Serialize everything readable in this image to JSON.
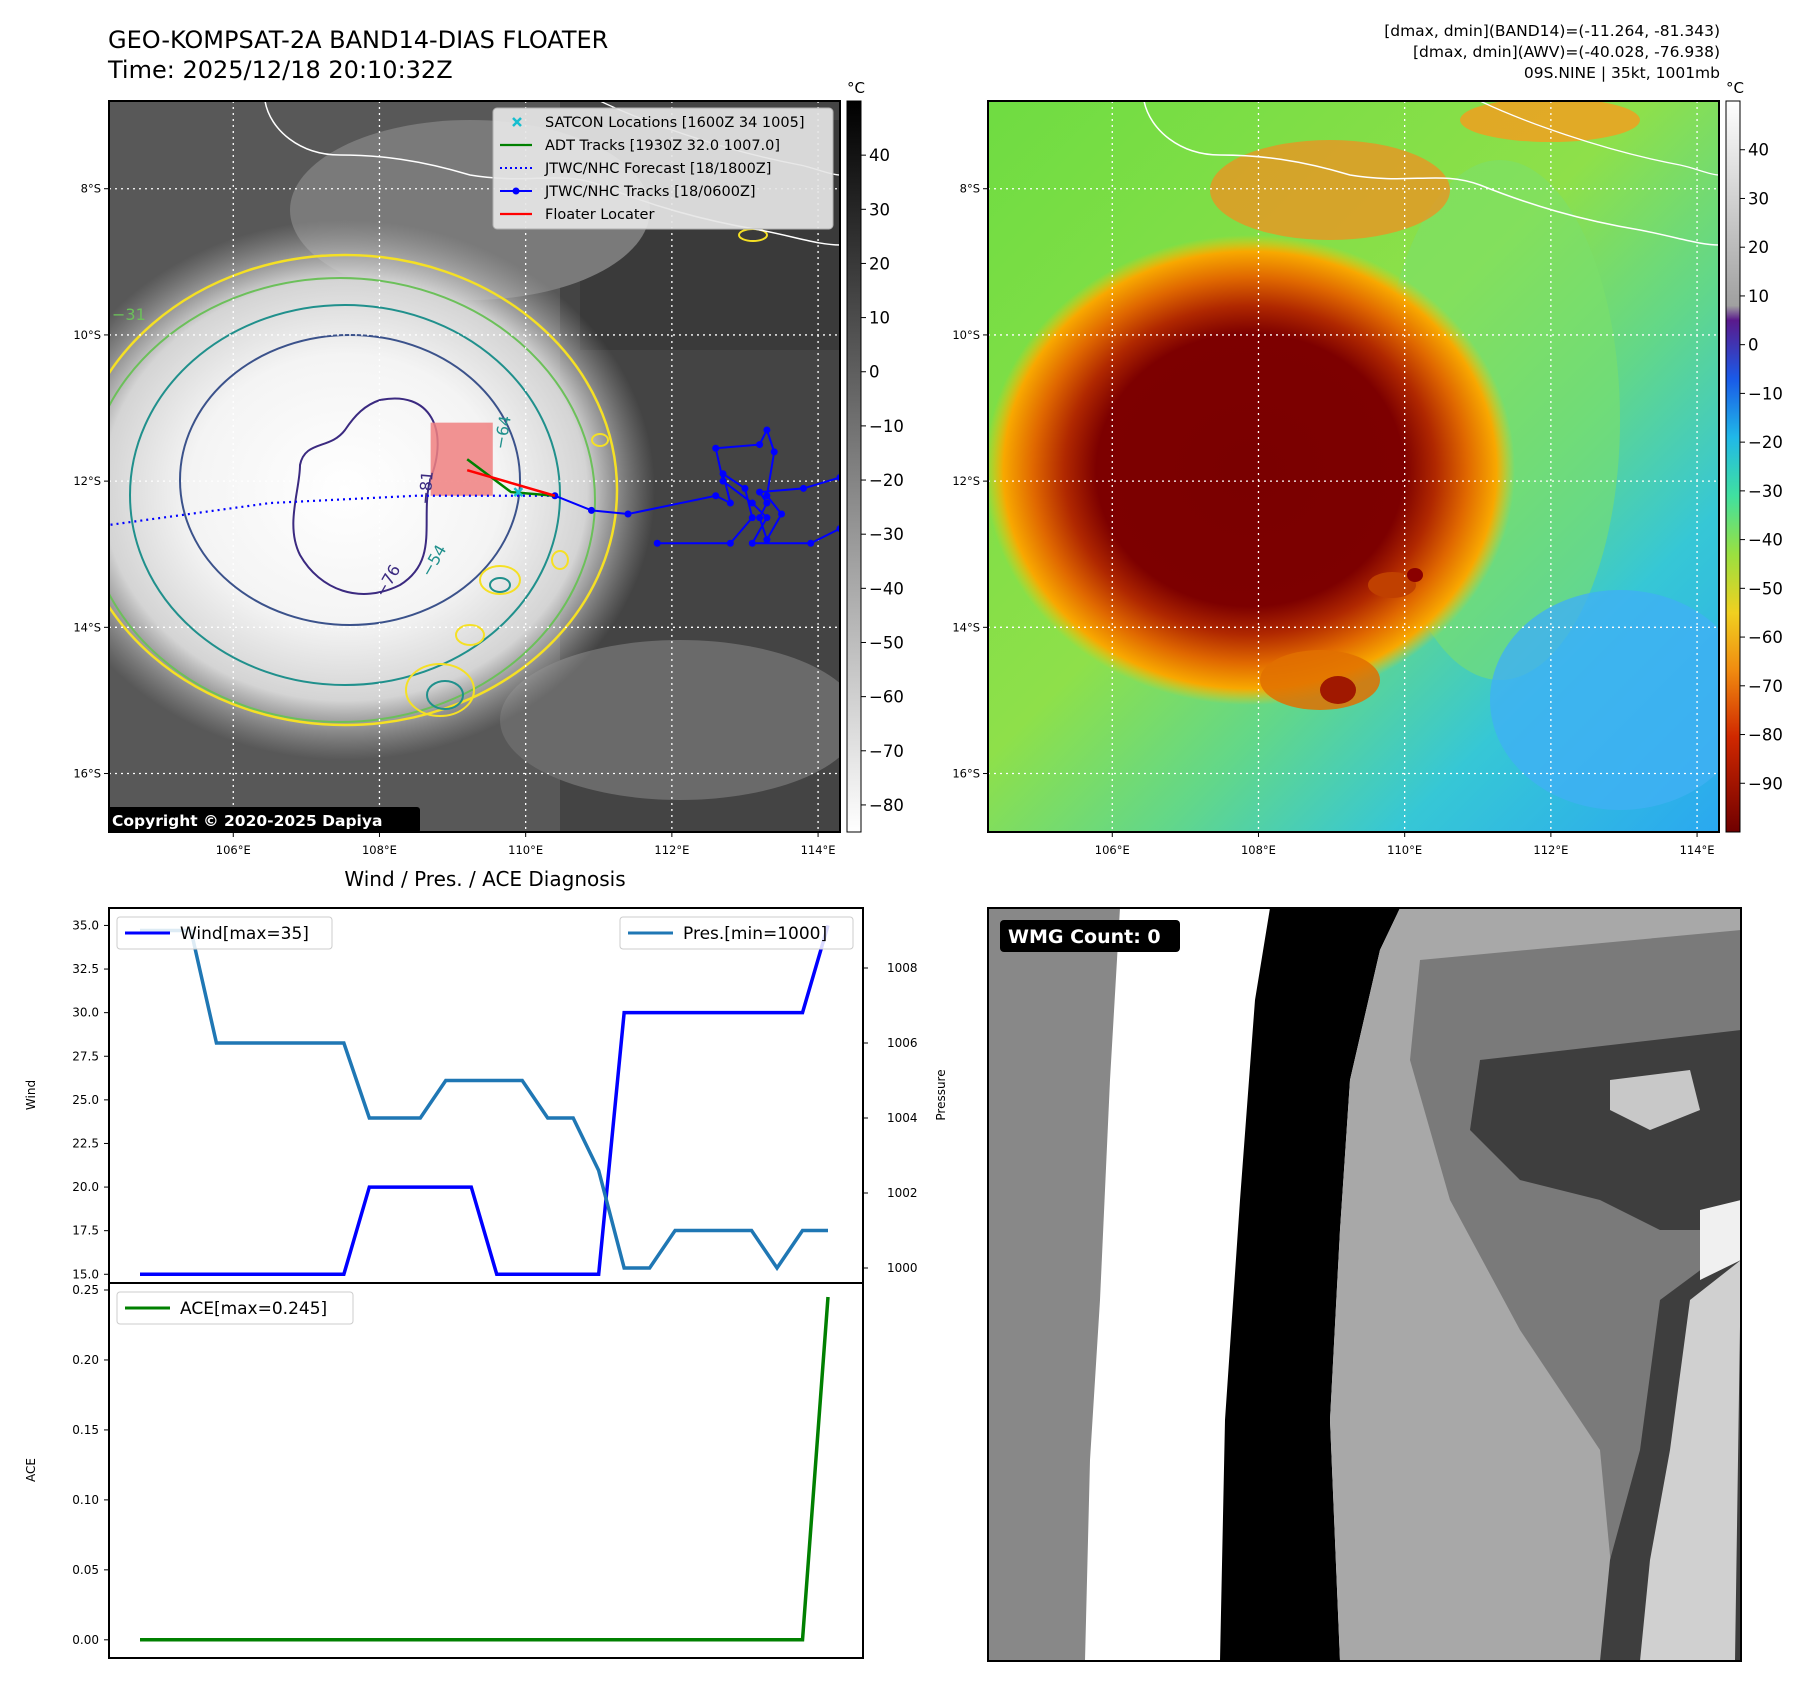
{
  "header": {
    "title": "GEO-KOMPSAT-2A BAND14-DIAS FLOATER",
    "time": "Time: 2025/12/18 20:10:32Z",
    "stats": [
      "[dmax, dmin](BAND14)=(-11.264, -81.343)",
      "[dmax, dmin](AWV)=(-40.028, -76.938)",
      "09S.NINE | 35kt, 1001mb"
    ]
  },
  "colors": {
    "wind": "#0000ff",
    "pressure": "#1f77b4",
    "ace": "#008000",
    "floater": "#ff0000",
    "satcon": "#17becf",
    "contour_yellow": "#f5e024",
    "contour_green": "#6cc05a",
    "contour_teal": "#20908c",
    "contour_purple": "#3b2a80"
  },
  "chart_data": [
    {
      "type": "map",
      "panel": "ir-grayscale",
      "x_ticks": [
        "106°E",
        "108°E",
        "110°E",
        "112°E",
        "114°E"
      ],
      "x_tick_values": [
        106,
        108,
        110,
        112,
        114
      ],
      "y_ticks": [
        "8°S",
        "10°S",
        "12°S",
        "14°S",
        "16°S"
      ],
      "y_tick_values": [
        -8,
        -10,
        -12,
        -14,
        -16
      ],
      "lon_range": [
        104.3,
        114.3
      ],
      "lat_range": [
        -16.8,
        -6.8
      ],
      "colorbar": {
        "unit": "°C",
        "ticks": [
          "40",
          "30",
          "20",
          "10",
          "0",
          "−10",
          "−20",
          "−30",
          "−40",
          "−50",
          "−60",
          "−70",
          "−80"
        ],
        "range": [
          -85,
          50
        ]
      },
      "legend": [
        {
          "label": "SATCON Locations [1600Z 34 1005]",
          "marker": "x",
          "color": "#17becf"
        },
        {
          "label": "ADT Tracks [1930Z 32.0 1007.0]",
          "line": "solid",
          "color": "#008000"
        },
        {
          "label": "JTWC/NHC Forecast [18/1800Z]",
          "line": "dotted",
          "color": "#0000ff"
        },
        {
          "label": "JTWC/NHC Tracks [18/0600Z]",
          "line": "solid-dot",
          "color": "#0000ff"
        },
        {
          "label": "Floater Locater",
          "line": "solid",
          "color": "#ff0000"
        }
      ],
      "contour_labels": [
        "−31",
        "−54",
        "−64",
        "−76",
        "−81"
      ],
      "jtwc_track": [
        [
          114.3,
          -11.95
        ],
        [
          113.8,
          -12.1
        ],
        [
          113.2,
          -12.15
        ],
        [
          113.3,
          -12.3
        ],
        [
          113.2,
          -12.5
        ],
        [
          113.3,
          -12.8
        ],
        [
          113.5,
          -12.45
        ],
        [
          113.3,
          -12.2
        ],
        [
          113.4,
          -11.6
        ],
        [
          113.3,
          -11.3
        ],
        [
          113.2,
          -11.5
        ],
        [
          112.6,
          -11.55
        ],
        [
          112.7,
          -12.0
        ],
        [
          113.1,
          -12.3
        ],
        [
          113.3,
          -12.5
        ],
        [
          113.1,
          -12.85
        ],
        [
          113.9,
          -12.85
        ],
        [
          114.3,
          -12.65
        ]
      ],
      "jtwc_track_west": [
        [
          111.8,
          -12.85
        ],
        [
          112.8,
          -12.85
        ],
        [
          113.1,
          -12.5
        ],
        [
          113.0,
          -12.1
        ],
        [
          112.7,
          -11.9
        ],
        [
          112.8,
          -12.3
        ],
        [
          112.6,
          -12.2
        ],
        [
          111.4,
          -12.45
        ],
        [
          110.9,
          -12.4
        ],
        [
          110.4,
          -12.2
        ]
      ],
      "jtwc_forecast": [
        [
          110.4,
          -12.2
        ],
        [
          108.5,
          -12.2
        ],
        [
          106.5,
          -12.3
        ],
        [
          104.3,
          -12.6
        ]
      ],
      "adt_track": [
        [
          109.2,
          -11.7
        ],
        [
          109.8,
          -12.15
        ],
        [
          110.4,
          -12.2
        ]
      ],
      "floater_line": [
        [
          109.2,
          -11.85
        ],
        [
          110.4,
          -12.2
        ]
      ],
      "floater_box_lon": [
        108.7,
        109.55
      ],
      "floater_box_lat": [
        -11.2,
        -12.2
      ],
      "copyright": "Copyright © 2020-2025 Dapiya"
    },
    {
      "type": "map",
      "panel": "ir-colorized",
      "x_ticks": [
        "106°E",
        "108°E",
        "110°E",
        "112°E",
        "114°E"
      ],
      "y_ticks": [
        "8°S",
        "10°S",
        "12°S",
        "14°S",
        "16°S"
      ],
      "colorbar": {
        "unit": "°C",
        "ticks": [
          "40",
          "30",
          "20",
          "10",
          "0",
          "−10",
          "−20",
          "−30",
          "−40",
          "−50",
          "−60",
          "−70",
          "−80",
          "−90"
        ],
        "range": [
          -100,
          50
        ]
      }
    },
    {
      "type": "line",
      "title": "Wind / Pres. / ACE Diagnosis",
      "x": [
        0,
        1,
        2,
        3,
        4,
        5,
        6,
        7,
        8,
        9,
        10,
        11,
        12,
        13,
        14,
        15,
        16,
        17,
        18,
        19,
        20,
        21,
        22,
        23,
        24,
        25,
        26,
        27
      ],
      "series": [
        {
          "name": "Wind",
          "legend": "Wind[max=35]",
          "axis": "left",
          "values": [
            15,
            15,
            15,
            15,
            15,
            15,
            15,
            15,
            15,
            20,
            20,
            20,
            20,
            20,
            15,
            15,
            15,
            15,
            15,
            30,
            30,
            30,
            30,
            30,
            30,
            30,
            30,
            35
          ]
        },
        {
          "name": "Pressure",
          "legend": "Pres.[min=1000]",
          "axis": "right",
          "values": [
            1009,
            1009,
            1009,
            1006,
            1006,
            1006,
            1006,
            1006,
            1006,
            1004,
            1004,
            1004,
            1005,
            1005,
            1005,
            1005,
            1004,
            1004,
            1002.6,
            1000,
            1000,
            1001,
            1001,
            1001,
            1001,
            1000,
            1001,
            1001
          ]
        }
      ],
      "ylabel": "Wind",
      "y2label": "Pressure",
      "ylim": [
        14.5,
        36
      ],
      "y2lim": [
        999.6,
        1009.6
      ],
      "yticks": [
        "15.0",
        "17.5",
        "20.0",
        "22.5",
        "25.0",
        "27.5",
        "30.0",
        "32.5",
        "35.0"
      ],
      "y2ticks": [
        "1000",
        "1002",
        "1004",
        "1006",
        "1008"
      ]
    },
    {
      "type": "line",
      "series": [
        {
          "name": "ACE",
          "legend": "ACE[max=0.245]",
          "values": [
            0,
            0,
            0,
            0,
            0,
            0,
            0,
            0,
            0,
            0,
            0,
            0,
            0,
            0,
            0,
            0,
            0,
            0,
            0,
            0,
            0,
            0,
            0,
            0,
            0,
            0,
            0,
            0.245
          ]
        }
      ],
      "ylabel": "ACE",
      "ylim": [
        -0.013,
        0.255
      ],
      "yticks": [
        "0.00",
        "0.05",
        "0.10",
        "0.15",
        "0.20",
        "0.25"
      ]
    },
    {
      "type": "heatmap",
      "panel": "wmg",
      "label": "WMG Count: 0"
    }
  ]
}
